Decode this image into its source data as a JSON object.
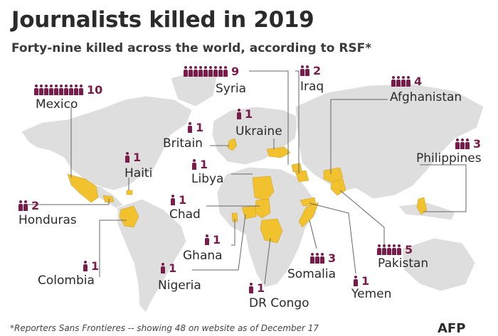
{
  "title": "Journalists killed in 2019",
  "subtitle": "Forty-nine killed across the world, according to RSF*",
  "footnote": "*Reporters Sans Frontieres -- showing 48 on website as of December 17",
  "logo": "AFP",
  "colors": {
    "land": "#dedede",
    "highlight": "#f2c12e",
    "marker": "#7a1c4a",
    "line": "#666666"
  },
  "icon_name": "person-icon",
  "countries": [
    {
      "name": "Mexico",
      "count": 10
    },
    {
      "name": "Syria",
      "count": 9
    },
    {
      "name": "Iraq",
      "count": 2
    },
    {
      "name": "Afghanistan",
      "count": 4
    },
    {
      "name": "Ukraine",
      "count": 1
    },
    {
      "name": "Britain",
      "count": 1
    },
    {
      "name": "Philippines",
      "count": 3
    },
    {
      "name": "Haiti",
      "count": 1
    },
    {
      "name": "Libya",
      "count": 1
    },
    {
      "name": "Honduras",
      "count": 2
    },
    {
      "name": "Chad",
      "count": 1
    },
    {
      "name": "Ghana",
      "count": 1
    },
    {
      "name": "Pakistan",
      "count": 5
    },
    {
      "name": "Colombia",
      "count": 1
    },
    {
      "name": "Somalia",
      "count": 3
    },
    {
      "name": "Nigeria",
      "count": 1
    },
    {
      "name": "Yemen",
      "count": 1
    },
    {
      "name": "DR Congo",
      "count": 1
    }
  ]
}
